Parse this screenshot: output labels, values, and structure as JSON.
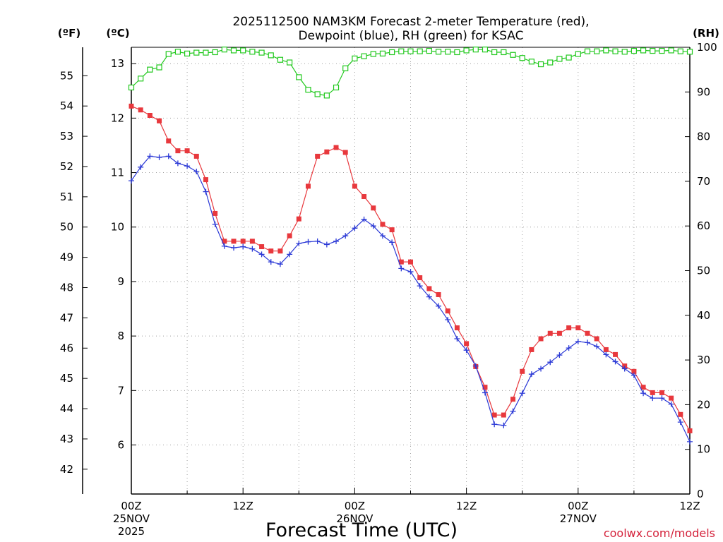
{
  "chart_data": {
    "type": "line",
    "title_line1": "2025112500 NAM3KM Forecast 2-meter Temperature (red),",
    "title_line2": "Dewpoint (blue), RH (green) for KSAC",
    "xlabel": "Forecast Time (UTC)",
    "credit": "coolwx.com/models",
    "units": {
      "left_outer": "(ºF)",
      "left_inner": "(ºC)",
      "right": "(RH)"
    },
    "x_range_hours": [
      0,
      60
    ],
    "x_ticks": [
      {
        "h": 0,
        "l1": "00Z",
        "l2": "25NOV",
        "l3": "2025"
      },
      {
        "h": 12,
        "l1": "12Z",
        "l2": "",
        "l3": ""
      },
      {
        "h": 24,
        "l1": "00Z",
        "l2": "26NOV",
        "l3": ""
      },
      {
        "h": 36,
        "l1": "12Z",
        "l2": "",
        "l3": ""
      },
      {
        "h": 48,
        "l1": "00Z",
        "l2": "27NOV",
        "l3": ""
      },
      {
        "h": 60,
        "l1": "12Z",
        "l2": "",
        "l3": ""
      }
    ],
    "celsius_axis": {
      "ylim": [
        5.1,
        13.3
      ],
      "ticks": [
        "6",
        "7",
        "8",
        "9",
        "10",
        "11",
        "12",
        "13"
      ]
    },
    "fahrenheit_axis": {
      "ticks": [
        "42",
        "43",
        "44",
        "45",
        "46",
        "47",
        "48",
        "49",
        "50",
        "51",
        "52",
        "53",
        "54",
        "55"
      ]
    },
    "rh_axis": {
      "ylim": [
        0,
        100
      ],
      "ticks": [
        "0",
        "10",
        "20",
        "30",
        "40",
        "50",
        "60",
        "70",
        "80",
        "90",
        "100"
      ]
    },
    "series": [
      {
        "name": "Temperature",
        "unit": "C",
        "color": "#e8383d",
        "marker": "filled-square",
        "values": [
          12.22,
          12.15,
          12.05,
          11.95,
          11.58,
          11.4,
          11.4,
          11.3,
          10.87,
          10.25,
          9.74,
          9.74,
          9.74,
          9.74,
          9.64,
          9.56,
          9.56,
          9.84,
          10.15,
          10.75,
          11.3,
          11.38,
          11.46,
          11.37,
          10.75,
          10.56,
          10.35,
          10.05,
          9.95,
          9.36,
          9.36,
          9.07,
          8.87,
          8.76,
          8.46,
          8.15,
          7.86,
          7.44,
          7.06,
          6.55,
          6.55,
          6.84,
          7.35,
          7.75,
          7.95,
          8.05,
          8.05,
          8.15,
          8.15,
          8.05,
          7.95,
          7.75,
          7.66,
          7.45,
          7.35,
          7.06,
          6.96,
          6.96,
          6.86,
          6.56,
          6.26
        ]
      },
      {
        "name": "Dewpoint",
        "unit": "C",
        "color": "#2b39d6",
        "marker": "plus",
        "values": [
          10.85,
          11.1,
          11.3,
          11.28,
          11.3,
          11.17,
          11.12,
          11.02,
          10.65,
          10.05,
          9.65,
          9.62,
          9.64,
          9.6,
          9.5,
          9.36,
          9.32,
          9.5,
          9.7,
          9.73,
          9.74,
          9.68,
          9.74,
          9.84,
          9.98,
          10.14,
          10.02,
          9.84,
          9.72,
          9.24,
          9.18,
          8.92,
          8.72,
          8.55,
          8.3,
          7.95,
          7.74,
          7.45,
          6.96,
          6.38,
          6.36,
          6.62,
          6.95,
          7.3,
          7.4,
          7.52,
          7.65,
          7.78,
          7.9,
          7.88,
          7.81,
          7.66,
          7.53,
          7.4,
          7.28,
          6.95,
          6.86,
          6.86,
          6.75,
          6.42,
          6.06
        ]
      },
      {
        "name": "RH",
        "unit": "%",
        "color": "#22c91e",
        "marker": "hollow-square",
        "values": [
          91,
          93,
          95,
          95.5,
          98.5,
          99,
          98.6,
          98.8,
          98.8,
          98.9,
          99.5,
          99.3,
          99.3,
          99,
          98.8,
          98.2,
          97.2,
          96.6,
          93.3,
          90.5,
          89.5,
          89.2,
          91,
          95.3,
          97.5,
          98,
          98.5,
          98.6,
          98.9,
          99.1,
          99.1,
          99.1,
          99.2,
          99,
          99,
          98.9,
          99.3,
          99.5,
          99.5,
          98.9,
          98.9,
          98.3,
          97.6,
          96.8,
          96.2,
          96.6,
          97.4,
          97.7,
          98.5,
          99.1,
          99.1,
          99.3,
          99.1,
          99,
          99.2,
          99.3,
          99.2,
          99.2,
          99.3,
          99.1,
          99
        ]
      }
    ]
  }
}
